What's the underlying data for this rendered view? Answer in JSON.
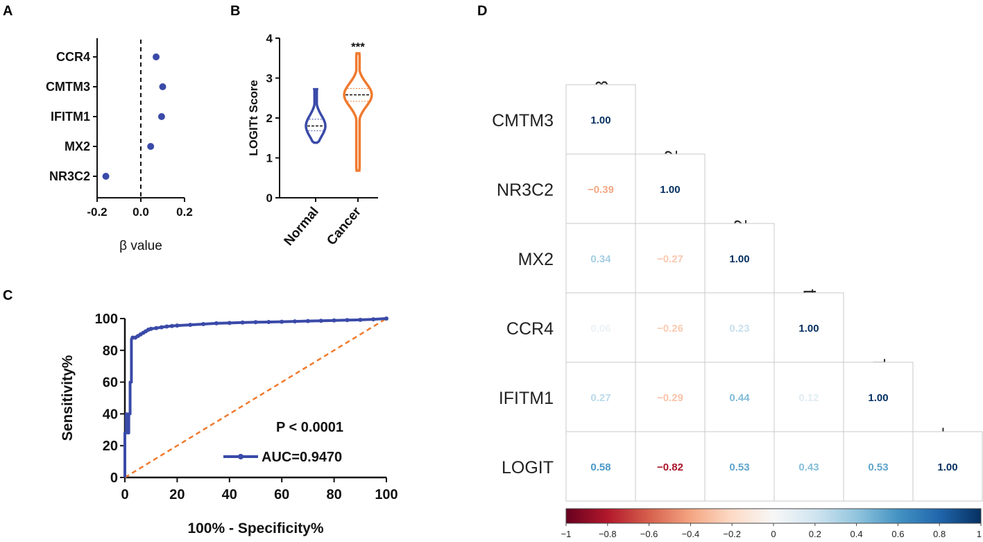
{
  "panels": {
    "a": {
      "letter": "A"
    },
    "b": {
      "letter": "B"
    },
    "c": {
      "letter": "C"
    },
    "d": {
      "letter": "D"
    }
  },
  "chart_data": [
    {
      "id": "a",
      "type": "scatter",
      "title": "",
      "xlabel": "β value",
      "ylabel": "",
      "xlim": [
        -0.2,
        0.2
      ],
      "xticks": [
        "-0.2",
        "0.0",
        "0.2"
      ],
      "xtick_values": [
        -0.2,
        0.0,
        0.2
      ],
      "categories": [
        "CCR4",
        "CMTM3",
        "IFITM1",
        "MX2",
        "NR3C2"
      ],
      "values": [
        0.07,
        0.1,
        0.095,
        0.045,
        -0.16
      ],
      "reference_line": 0.0,
      "color": "#3a4aa8"
    },
    {
      "id": "b",
      "type": "violin",
      "ylabel": "LOGITt Score",
      "ylim": [
        0,
        4
      ],
      "yticks": [
        "0",
        "1",
        "2",
        "3",
        "4"
      ],
      "ytick_values": [
        0,
        1,
        2,
        3,
        4
      ],
      "categories": [
        "Normal",
        "Cancer"
      ],
      "series": [
        {
          "name": "Normal",
          "min": 1.38,
          "max": 2.72,
          "median": 1.8,
          "q1": 1.68,
          "q3": 1.97,
          "color": "#3a4aa8"
        },
        {
          "name": "Cancer",
          "min": 0.68,
          "max": 3.62,
          "median": 2.58,
          "q1": 2.42,
          "q3": 2.74,
          "color": "#f07a2e"
        }
      ],
      "annotation": "***"
    },
    {
      "id": "c",
      "type": "line",
      "title": "",
      "xlabel": "100% - Specificity%",
      "ylabel": "Sensitivity%",
      "xlim": [
        0,
        100
      ],
      "ylim": [
        0,
        100
      ],
      "xticks": [
        "0",
        "20",
        "40",
        "60",
        "80",
        "100"
      ],
      "xtick_values": [
        0,
        20,
        40,
        60,
        80,
        100
      ],
      "yticks": [
        "0",
        "20",
        "40",
        "60",
        "80",
        "100"
      ],
      "ytick_values": [
        0,
        20,
        40,
        60,
        80,
        100
      ],
      "series": [
        {
          "name": "AUC=0.9470",
          "color": "#3a4aa8",
          "x": [
            0,
            0,
            0.5,
            0.5,
            1,
            1,
            1.5,
            1.5,
            2,
            2,
            2.5,
            2.5,
            3,
            4,
            5,
            6,
            7,
            8,
            9,
            10,
            12,
            14,
            16,
            18,
            20,
            25,
            30,
            35,
            40,
            45,
            50,
            55,
            60,
            65,
            70,
            75,
            80,
            85,
            90,
            95,
            100
          ],
          "y": [
            0,
            28,
            28,
            40,
            40,
            28,
            28,
            40,
            40,
            60,
            60,
            87,
            88,
            88,
            89,
            90,
            91,
            92,
            93,
            93.5,
            94,
            94.5,
            95,
            95.3,
            95.6,
            96,
            96.5,
            97,
            97.2,
            97.5,
            97.7,
            97.8,
            98,
            98.2,
            98.4,
            98.6,
            98.8,
            99,
            99.2,
            99.5,
            100
          ]
        },
        {
          "name": "reference",
          "color": "#f07a2e",
          "dashed": true,
          "x": [
            0,
            100
          ],
          "y": [
            0,
            100
          ]
        }
      ],
      "annotations": [
        "P < 0.0001"
      ],
      "legend": "bottom-right"
    },
    {
      "id": "d",
      "type": "heatmap",
      "variables": [
        "CMTM3",
        "NR3C2",
        "MX2",
        "CCR4",
        "IFITM1",
        "LOGIT"
      ],
      "lower_triangle": [
        [
          "1.00"
        ],
        [
          "-0.39",
          "1.00"
        ],
        [
          "0.34",
          "-0.27",
          "1.00"
        ],
        [
          "0.06",
          "-0.26",
          "0.23",
          "1.00"
        ],
        [
          "0.27",
          "-0.29",
          "0.44",
          "0.12",
          "1.00"
        ],
        [
          "0.58",
          "-0.82",
          "0.53",
          "0.43",
          "0.53",
          "1.00"
        ]
      ],
      "colorbar": {
        "range": [
          -1,
          1
        ],
        "ticks": [
          "-1",
          "-0.8",
          "-0.6",
          "-0.4",
          "-0.2",
          "0",
          "0.2",
          "0.4",
          "0.6",
          "0.8",
          "1"
        ],
        "tick_values": [
          -1,
          -0.8,
          -0.6,
          -0.4,
          -0.2,
          0,
          0.2,
          0.4,
          0.6,
          0.8,
          1
        ],
        "colors": [
          "#67001f",
          "#b2182b",
          "#d6604d",
          "#f4a582",
          "#fddbc7",
          "#f7f7f7",
          "#d1e5f0",
          "#92c5de",
          "#4393c3",
          "#2166ac",
          "#053061"
        ]
      }
    }
  ]
}
